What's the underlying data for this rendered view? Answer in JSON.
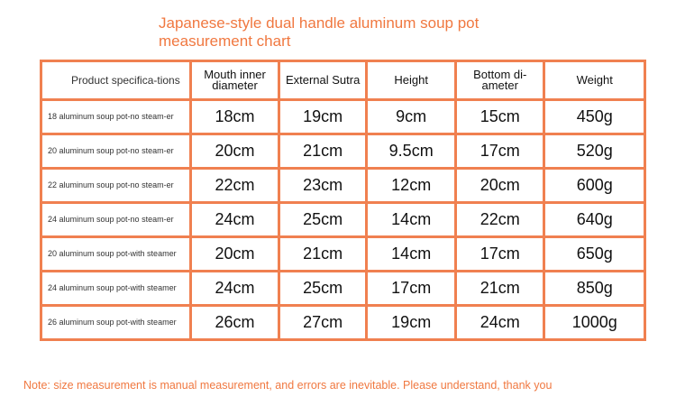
{
  "title": "Japanese-style dual handle aluminum soup pot measurement chart",
  "headers": [
    "Product specifica-tions",
    "Mouth inner diameter",
    "External Sutra",
    "Height",
    "Bottom di-ameter",
    "Weight"
  ],
  "rows": [
    [
      "18 aluminum soup pot-no steam-er",
      "18cm",
      "19cm",
      "9cm",
      "15cm",
      "450g"
    ],
    [
      "20 aluminum soup pot-no steam-er",
      "20cm",
      "21cm",
      "9.5cm",
      "17cm",
      "520g"
    ],
    [
      "22 aluminum soup pot-no steam-er",
      "22cm",
      "23cm",
      "12cm",
      "20cm",
      "600g"
    ],
    [
      "24 aluminum soup pot-no steam-er",
      "24cm",
      "25cm",
      "14cm",
      "22cm",
      "640g"
    ],
    [
      "20 aluminum soup pot-with steamer",
      "20cm",
      "21cm",
      "14cm",
      "17cm",
      "650g"
    ],
    [
      "24 aluminum soup pot-with steamer",
      "24cm",
      "25cm",
      "17cm",
      "21cm",
      "850g"
    ],
    [
      "26 aluminum soup pot-with steamer",
      "26cm",
      "27cm",
      "19cm",
      "24cm",
      "1000g"
    ]
  ],
  "note": "Note: size measurement is manual measurement, and errors are inevitable. Please understand, thank you",
  "colors": {
    "accent": "#f07840",
    "border": "#f08050"
  }
}
